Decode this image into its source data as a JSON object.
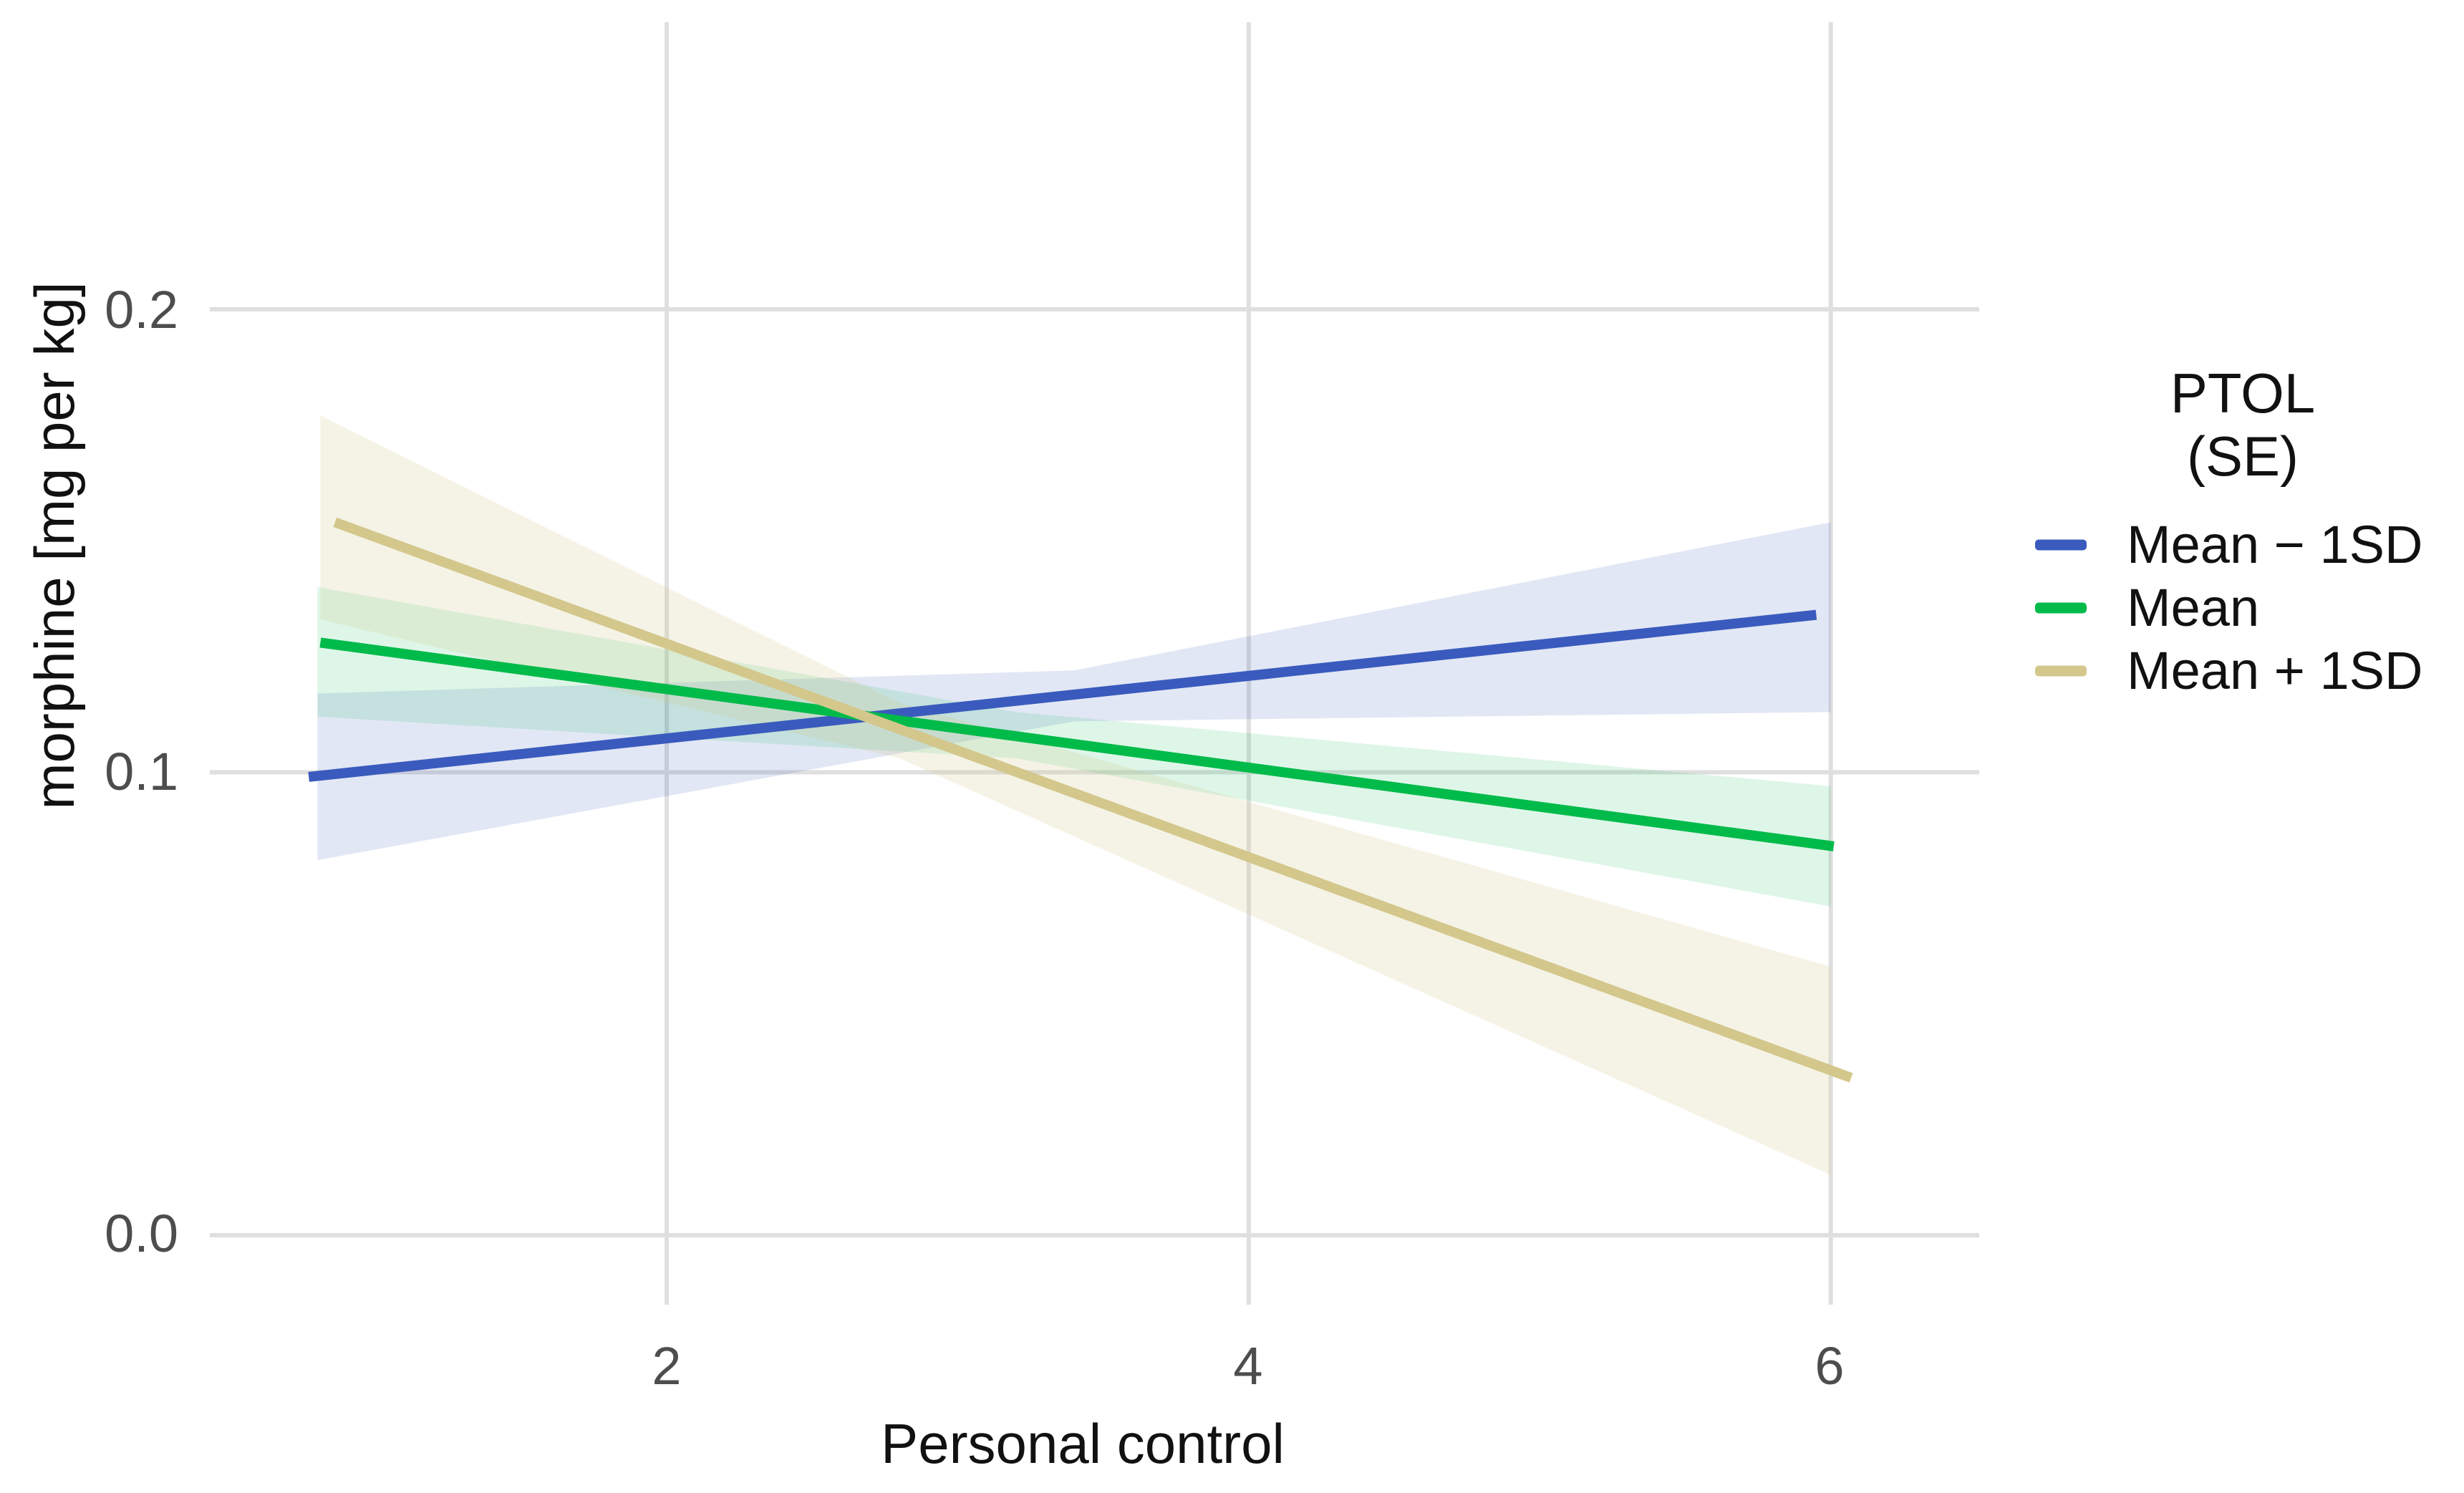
{
  "figure": {
    "background": "#FFFFFF",
    "colors": {
      "grid": "#DFDFDF",
      "tick_text": "#4D4D4D",
      "title_text": "#111111"
    },
    "axes": {
      "x": {
        "title": "Personal control",
        "ticks": [
          {
            "value": 2,
            "label": "2"
          },
          {
            "value": 4,
            "label": "4"
          },
          {
            "value": 6,
            "label": "6"
          }
        ]
      },
      "y": {
        "title": "morphine [mg per kg]",
        "ticks": [
          {
            "value": 0.0,
            "label": "0.0"
          },
          {
            "value": 0.1,
            "label": "0.1"
          },
          {
            "value": 0.2,
            "label": "0.2"
          }
        ]
      }
    },
    "legend": {
      "title_lines": [
        "PTOL",
        "(SE)"
      ],
      "entries": [
        {
          "label": "Mean − 1SD",
          "color": "#3A5BBD"
        },
        {
          "label": "Mean",
          "color": "#00BA4A"
        },
        {
          "label": "Mean + 1SD",
          "color": "#D3C78C"
        }
      ]
    }
  },
  "chart_data": {
    "type": "line",
    "title": "",
    "xlabel": "Personal control",
    "ylabel": "morphine [mg per kg]",
    "xlim": [
      0.43,
      6.51
    ],
    "ylim": [
      -0.015,
      0.262
    ],
    "x_ticks": [
      2,
      4,
      6
    ],
    "y_ticks": [
      0.0,
      0.1,
      0.2
    ],
    "grid": "major-only",
    "legend_position": "right",
    "legend_title": "PTOL (SE)",
    "series": [
      {
        "name": "Mean − 1SD",
        "color": "#3A5BBD",
        "fill": "rgba(58, 91, 189, 0.15)",
        "line": {
          "x": [
            0.77,
            5.95
          ],
          "y": [
            0.099,
            0.134
          ]
        },
        "band": {
          "x": [
            0.8,
            3.4,
            6.0
          ],
          "upper": [
            0.117,
            0.122,
            0.154
          ],
          "lower": [
            0.081,
            0.111,
            0.113
          ]
        }
      },
      {
        "name": "Mean",
        "color": "#00BA4A",
        "fill": "rgba(0, 186, 74, 0.13)",
        "line": {
          "x": [
            0.81,
            6.01
          ],
          "y": [
            0.128,
            0.084
          ]
        },
        "band": {
          "x": [
            0.8,
            3.2,
            6.0
          ],
          "upper": [
            0.14,
            0.113,
            0.097
          ],
          "lower": [
            0.112,
            0.103,
            0.071
          ]
        }
      },
      {
        "name": "Mean + 1SD",
        "color": "#D3C78C",
        "fill": "rgba(211, 199, 140, 0.22)",
        "line": {
          "x": [
            0.86,
            6.07
          ],
          "y": [
            0.154,
            0.034
          ]
        },
        "band": {
          "x": [
            0.81,
            2.8,
            6.0
          ],
          "upper": [
            0.177,
            0.115,
            0.058
          ],
          "lower": [
            0.133,
            0.103,
            0.013
          ]
        }
      }
    ]
  }
}
